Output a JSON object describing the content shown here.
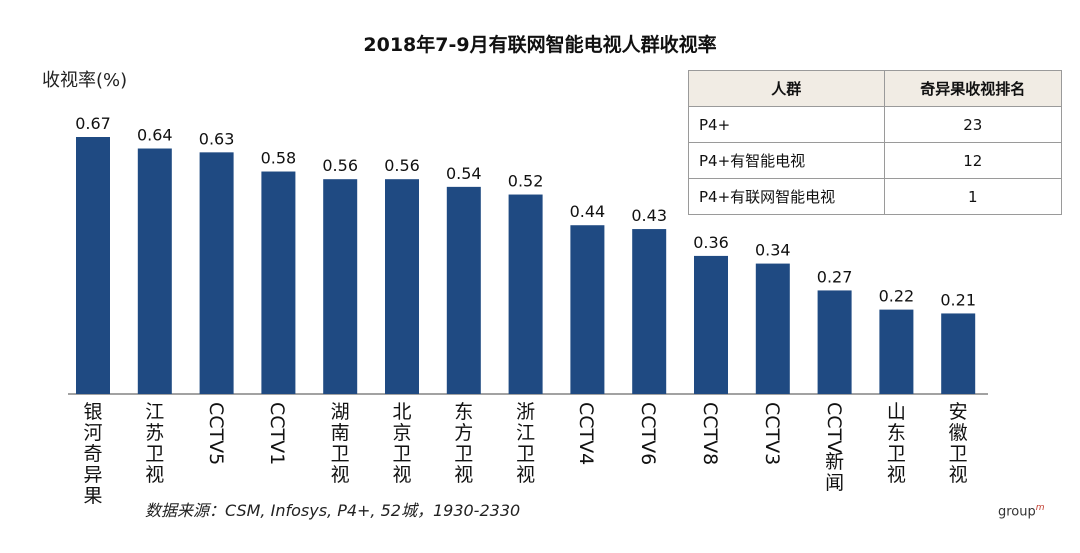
{
  "chart_data": {
    "type": "bar",
    "title": "2018年7-9月有联网智能电视人群收视率",
    "ylabel": "收视率(%)",
    "xlabel": "",
    "categories": [
      "银河奇异果",
      "江苏卫视",
      "CCTV5",
      "CCTV1",
      "湖南卫视",
      "北京卫视",
      "东方卫视",
      "浙江卫视",
      "CCTV4",
      "CCTV6",
      "CCTV8",
      "CCTV3",
      "CCTV新闻",
      "山东卫视",
      "安徽卫视"
    ],
    "values": [
      0.67,
      0.64,
      0.63,
      0.58,
      0.56,
      0.56,
      0.54,
      0.52,
      0.44,
      0.43,
      0.36,
      0.34,
      0.27,
      0.22,
      0.21
    ],
    "value_labels": [
      "0.67",
      "0.64",
      "0.63",
      "0.58",
      "0.56",
      "0.56",
      "0.54",
      "0.52",
      "0.44",
      "0.43",
      "0.36",
      "0.34",
      "0.27",
      "0.22",
      "0.21"
    ],
    "ylim": [
      0,
      0.67
    ],
    "grid": false,
    "bar_color": "#1f4a82"
  },
  "rank_table": {
    "headers": [
      "人群",
      "奇异果收视排名"
    ],
    "rows": [
      [
        "P4+",
        "23"
      ],
      [
        "P4+有智能电视",
        "12"
      ],
      [
        "P4+有联网智能电视",
        "1"
      ]
    ],
    "header_bg": "#f1ece4"
  },
  "source": "数据来源：CSM, Infosys, P4+, 52城，1930-2330",
  "brand": {
    "name": "group",
    "suffix": "m"
  }
}
